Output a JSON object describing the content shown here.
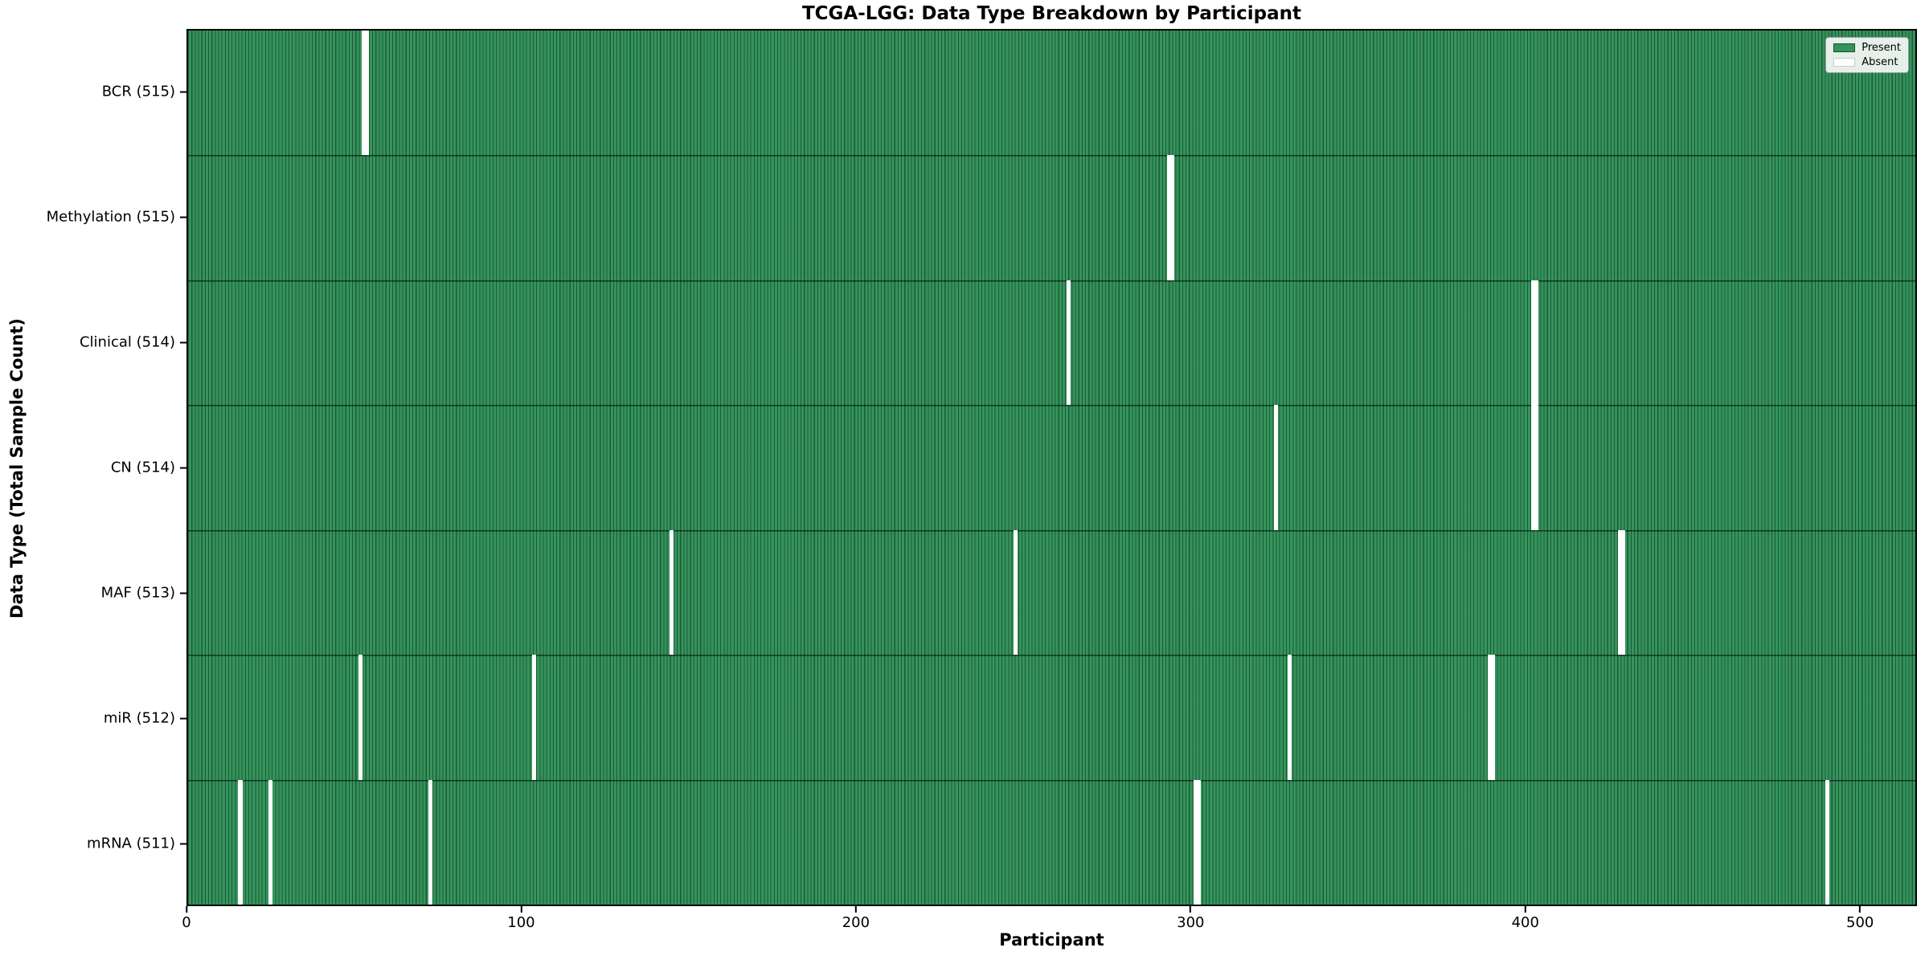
{
  "chart_data": {
    "type": "heatmap",
    "title": "TCGA-LGG: Data Type Breakdown by Participant",
    "xlabel": "Participant",
    "ylabel": "Data Type (Total Sample Count)",
    "x_ticks": [
      0,
      100,
      200,
      300,
      400,
      500
    ],
    "x_range": [
      0,
      517
    ],
    "n_participants": 517,
    "grid": false,
    "legend_position": "upper right",
    "legend": [
      {
        "label": "Present",
        "color": "#35945c"
      },
      {
        "label": "Absent",
        "color": "#ffffff"
      }
    ],
    "rows": [
      {
        "label": "BCR (515)",
        "data_type": "BCR",
        "total": 515,
        "absent_gaps": [
          {
            "start": 52,
            "width": 2
          }
        ]
      },
      {
        "label": "Methylation (515)",
        "data_type": "Methylation",
        "total": 515,
        "absent_gaps": [
          {
            "start": 293,
            "width": 2
          }
        ]
      },
      {
        "label": "Clinical (514)",
        "data_type": "Clinical",
        "total": 514,
        "absent_gaps": [
          {
            "start": 263,
            "width": 1
          },
          {
            "start": 402,
            "width": 2
          }
        ]
      },
      {
        "label": "CN (514)",
        "data_type": "CN",
        "total": 514,
        "absent_gaps": [
          {
            "start": 325,
            "width": 1
          },
          {
            "start": 402,
            "width": 2
          }
        ]
      },
      {
        "label": "MAF (513)",
        "data_type": "MAF",
        "total": 513,
        "absent_gaps": [
          {
            "start": 144,
            "width": 1
          },
          {
            "start": 247,
            "width": 1
          },
          {
            "start": 428,
            "width": 2
          }
        ]
      },
      {
        "label": "miR (512)",
        "data_type": "miR",
        "total": 512,
        "absent_gaps": [
          {
            "start": 51,
            "width": 1
          },
          {
            "start": 103,
            "width": 1
          },
          {
            "start": 329,
            "width": 1
          },
          {
            "start": 389,
            "width": 2
          }
        ]
      },
      {
        "label": "mRNA (511)",
        "data_type": "mRNA",
        "total": 511,
        "absent_gaps": [
          {
            "start": 15,
            "width": 1
          },
          {
            "start": 24,
            "width": 1
          },
          {
            "start": 72,
            "width": 1
          },
          {
            "start": 301,
            "width": 2
          },
          {
            "start": 490,
            "width": 1
          }
        ]
      }
    ],
    "colors": {
      "present": "#35945c",
      "absent": "#ffffff",
      "bar_edge": "#14532e",
      "spine": "#000000",
      "legend_border": "#9a9a9a"
    }
  }
}
